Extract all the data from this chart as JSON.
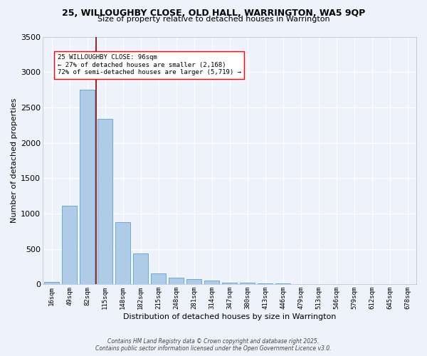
{
  "title": "25, WILLOUGHBY CLOSE, OLD HALL, WARRINGTON, WA5 9QP",
  "subtitle": "Size of property relative to detached houses in Warrington",
  "xlabel": "Distribution of detached houses by size in Warrington",
  "ylabel": "Number of detached properties",
  "all_labels": [
    "16sqm",
    "49sqm",
    "82sqm",
    "115sqm",
    "148sqm",
    "182sqm",
    "215sqm",
    "248sqm",
    "281sqm",
    "314sqm",
    "347sqm",
    "380sqm",
    "413sqm",
    "446sqm",
    "479sqm",
    "513sqm",
    "546sqm",
    "579sqm",
    "612sqm",
    "645sqm",
    "678sqm"
  ],
  "counts": [
    30,
    1110,
    2750,
    2340,
    880,
    440,
    155,
    90,
    70,
    50,
    20,
    20,
    15,
    10,
    5,
    5,
    5,
    5,
    5,
    3,
    2
  ],
  "bar_color": "#aecbe8",
  "bar_edge_color": "#6aaad4",
  "red_line_x": 3,
  "annotation_title": "25 WILLOUGHBY CLOSE: 96sqm",
  "annotation_line1": "← 27% of detached houses are smaller (2,168)",
  "annotation_line2": "72% of semi-detached houses are larger (5,719) →",
  "background_color": "#eef2fa",
  "grid_color": "#dce6f5",
  "ylim": [
    0,
    3500
  ],
  "yticks": [
    0,
    500,
    1000,
    1500,
    2000,
    2500,
    3000,
    3500
  ],
  "footer1": "Contains HM Land Registry data © Crown copyright and database right 2025.",
  "footer2": "Contains public sector information licensed under the Open Government Licence v3.0."
}
